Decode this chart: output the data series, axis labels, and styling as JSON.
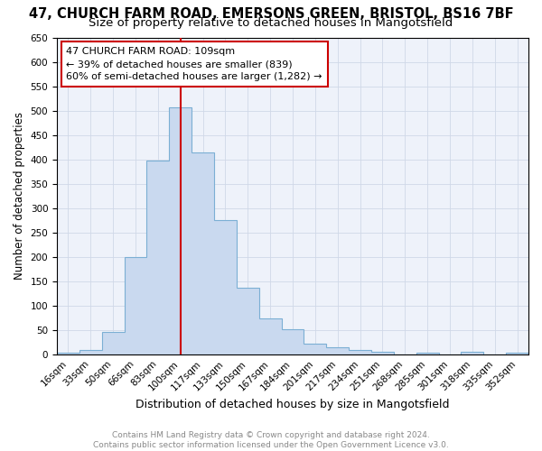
{
  "title1": "47, CHURCH FARM ROAD, EMERSONS GREEN, BRISTOL, BS16 7BF",
  "title2": "Size of property relative to detached houses in Mangotsfield",
  "xlabel": "Distribution of detached houses by size in Mangotsfield",
  "ylabel": "Number of detached properties",
  "bin_labels": [
    "16sqm",
    "33sqm",
    "50sqm",
    "66sqm",
    "83sqm",
    "100sqm",
    "117sqm",
    "133sqm",
    "150sqm",
    "167sqm",
    "184sqm",
    "201sqm",
    "217sqm",
    "234sqm",
    "251sqm",
    "268sqm",
    "285sqm",
    "301sqm",
    "318sqm",
    "335sqm",
    "352sqm"
  ],
  "values": [
    5,
    10,
    46,
    200,
    398,
    507,
    415,
    275,
    137,
    75,
    52,
    22,
    15,
    10,
    6,
    0,
    5,
    0,
    6,
    0,
    4
  ],
  "bar_color": "#c9d9ef",
  "bar_edge_color": "#7bafd4",
  "vline_position": 5.5,
  "annotation_text": "47 CHURCH FARM ROAD: 109sqm\n← 39% of detached houses are smaller (839)\n60% of semi-detached houses are larger (1,282) →",
  "annotation_box_color": "#ffffff",
  "annotation_box_edge_color": "#cc0000",
  "vline_color": "#cc0000",
  "grid_color": "#d0d8e8",
  "background_color": "#eef2fa",
  "footer_text": "Contains HM Land Registry data © Crown copyright and database right 2024.\nContains public sector information licensed under the Open Government Licence v3.0.",
  "ylim": [
    0,
    650
  ],
  "yticks": [
    0,
    50,
    100,
    150,
    200,
    250,
    300,
    350,
    400,
    450,
    500,
    550,
    600,
    650
  ],
  "title1_fontsize": 10.5,
  "title2_fontsize": 9.5,
  "xlabel_fontsize": 9,
  "ylabel_fontsize": 8.5,
  "tick_fontsize": 7.5,
  "footer_fontsize": 6.5,
  "annotation_fontsize": 8
}
